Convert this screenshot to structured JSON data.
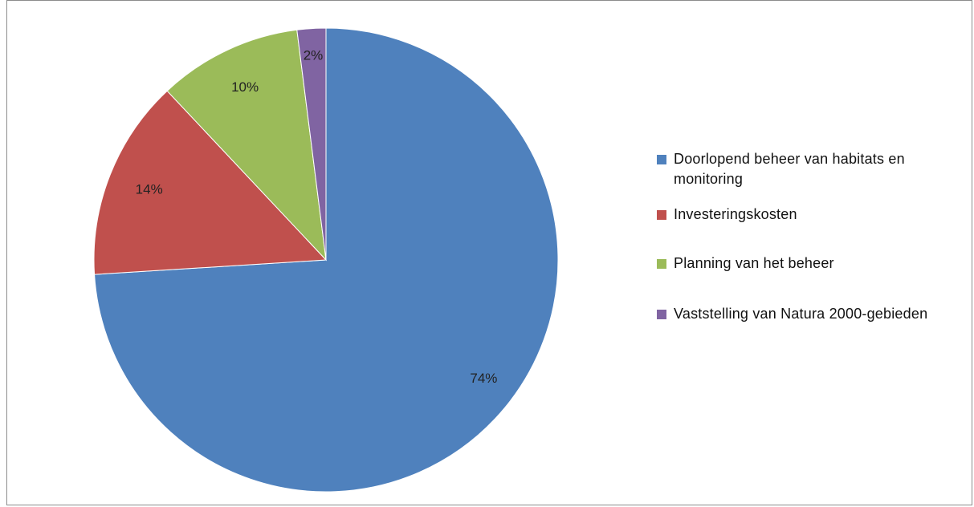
{
  "chart_data": {
    "type": "pie",
    "title": "",
    "slices": [
      {
        "label": "Doorlopend beheer van habitats en monitoring",
        "value": 74,
        "value_label": "74%",
        "color": "#4f81bd"
      },
      {
        "label": "Investeringskosten",
        "value": 14,
        "value_label": "14%",
        "color": "#c0504d"
      },
      {
        "label": "Planning van het beheer",
        "value": 10,
        "value_label": "10%",
        "color": "#9bbb59"
      },
      {
        "label": "Vaststelling van Natura 2000-gebieden",
        "value": 2,
        "value_label": "2%",
        "color": "#8064a2"
      }
    ],
    "legend": {
      "position": "right",
      "items": [
        {
          "text": "Doorlopend beheer van habitats en monitoring",
          "color": "#4f81bd"
        },
        {
          "text": "Investeringskosten",
          "color": "#c0504d"
        },
        {
          "text": "Planning van het beheer",
          "color": "#9bbb59"
        },
        {
          "text": "Vaststelling van Natura 2000-gebieden",
          "color": "#8064a2"
        }
      ]
    }
  }
}
